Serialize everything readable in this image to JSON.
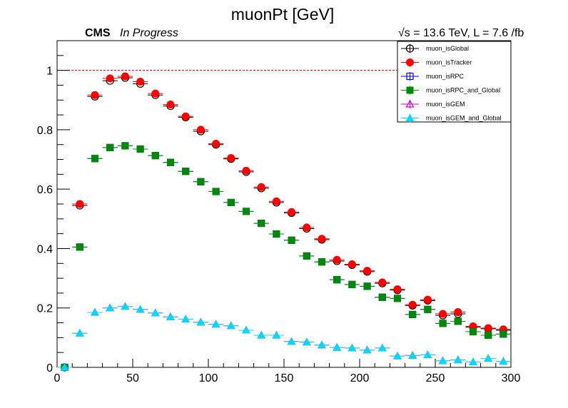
{
  "header": {
    "title": "muonPt [GeV]",
    "experiment": "CMS",
    "status": "In Progress",
    "sqrt_symbol": "√s",
    "energy_lumi": " = 13.6 TeV, L = 7.6 /fb"
  },
  "chart_data": {
    "type": "scatter",
    "title": "muonPt [GeV]",
    "xlabel": "",
    "ylabel": "",
    "xlim": [
      0,
      300
    ],
    "ylim": [
      0,
      1.1
    ],
    "x_ticks": [
      0,
      50,
      100,
      150,
      200,
      250,
      300
    ],
    "y_ticks": [
      0,
      0.2,
      0.4,
      0.6,
      0.8,
      1
    ],
    "x_bin_width": 10,
    "reference_line": {
      "y": 1,
      "color": "#cc0000",
      "style": "dashed"
    },
    "grid": false,
    "legend_position": "top-right",
    "x": [
      5,
      15,
      25,
      35,
      45,
      55,
      65,
      75,
      85,
      95,
      105,
      115,
      125,
      135,
      145,
      155,
      165,
      175,
      185,
      195,
      205,
      215,
      225,
      235,
      245,
      255,
      265,
      275,
      285,
      295
    ],
    "series": [
      {
        "name": "muon_isGlobal",
        "marker": "open-circle",
        "color": "#000000",
        "values": [
          0.0,
          0.545,
          0.912,
          0.965,
          0.975,
          0.955,
          0.917,
          0.88,
          0.842,
          0.795,
          0.75,
          0.702,
          0.658,
          0.603,
          0.555,
          0.52,
          0.467,
          0.43,
          0.358,
          0.345,
          0.322,
          0.283,
          0.26,
          0.208,
          0.225,
          0.175,
          0.18,
          0.135,
          0.13,
          0.125
        ]
      },
      {
        "name": "muon_isTracker",
        "marker": "filled-circle",
        "color": "#ff0000",
        "values": [
          0.0,
          0.55,
          0.917,
          0.973,
          0.98,
          0.962,
          0.922,
          0.885,
          0.845,
          0.8,
          0.753,
          0.705,
          0.662,
          0.607,
          0.559,
          0.523,
          0.471,
          0.433,
          0.362,
          0.347,
          0.325,
          0.286,
          0.263,
          0.211,
          0.228,
          0.18,
          0.186,
          0.138,
          0.132,
          0.128
        ]
      },
      {
        "name": "muon_isRPC",
        "marker": "open-square",
        "color": "#0000ff",
        "values": [
          0.0,
          0.405,
          0.703,
          0.74,
          0.746,
          0.735,
          0.713,
          0.69,
          0.66,
          0.625,
          0.592,
          0.555,
          0.525,
          0.485,
          0.449,
          0.428,
          0.375,
          0.355,
          0.295,
          0.279,
          0.273,
          0.236,
          0.232,
          0.178,
          0.195,
          0.148,
          0.155,
          0.12,
          0.108,
          0.112
        ]
      },
      {
        "name": "muon_isRPC_and_Global",
        "marker": "filled-square",
        "color": "#008800",
        "values": [
          0.0,
          0.405,
          0.703,
          0.74,
          0.746,
          0.735,
          0.713,
          0.69,
          0.66,
          0.625,
          0.592,
          0.555,
          0.525,
          0.485,
          0.449,
          0.428,
          0.375,
          0.355,
          0.295,
          0.279,
          0.273,
          0.236,
          0.232,
          0.178,
          0.195,
          0.148,
          0.155,
          0.12,
          0.108,
          0.112
        ]
      },
      {
        "name": "muon_isGEM",
        "marker": "open-triangle",
        "color": "#cc00cc",
        "values": [
          0.0,
          0.115,
          0.185,
          0.2,
          0.205,
          0.195,
          0.183,
          0.17,
          0.162,
          0.152,
          0.145,
          0.14,
          0.125,
          0.108,
          0.108,
          0.087,
          0.085,
          0.075,
          0.067,
          0.065,
          0.058,
          0.065,
          0.038,
          0.04,
          0.042,
          0.022,
          0.025,
          0.018,
          0.03,
          0.02
        ]
      },
      {
        "name": "muon_isGEM_and_Global",
        "marker": "filled-triangle",
        "color": "#00d8ff",
        "values": [
          0.0,
          0.115,
          0.185,
          0.2,
          0.205,
          0.195,
          0.183,
          0.17,
          0.162,
          0.152,
          0.145,
          0.14,
          0.125,
          0.108,
          0.108,
          0.087,
          0.085,
          0.075,
          0.067,
          0.065,
          0.058,
          0.065,
          0.038,
          0.04,
          0.042,
          0.022,
          0.025,
          0.018,
          0.03,
          0.02
        ]
      }
    ]
  }
}
